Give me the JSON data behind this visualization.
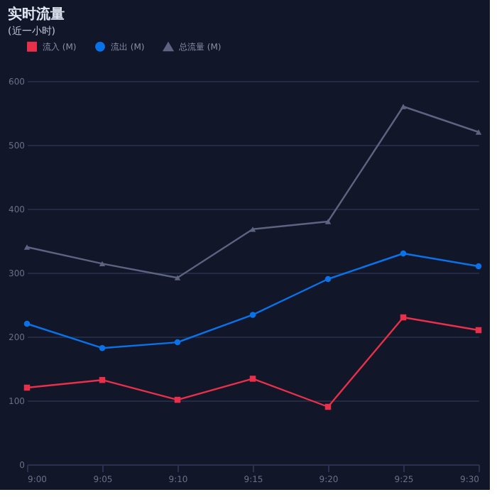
{
  "chart_data": {
    "type": "line",
    "title": "实时流量",
    "subtitle": "(近一小时)",
    "categories": [
      "9:00",
      "9:05",
      "9:10",
      "9:15",
      "9:20",
      "9:25",
      "9:30"
    ],
    "series": [
      {
        "name": "流入 (M)",
        "color": "#e8304a",
        "marker": "square",
        "values": [
          120,
          132,
          101,
          134,
          90,
          230,
          210
        ]
      },
      {
        "name": "流出 (M)",
        "color": "#0a72e8",
        "marker": "circle",
        "values": [
          220,
          182,
          191,
          234,
          290,
          330,
          310
        ]
      },
      {
        "name": "总流量 (M)",
        "color": "#5d6380",
        "marker": "triangle",
        "values": [
          340,
          314,
          292,
          368,
          380,
          560,
          520
        ]
      }
    ],
    "ylim": [
      0,
      600
    ],
    "yticks": [
      0,
      100,
      200,
      300,
      400,
      500,
      600
    ],
    "grid": "y",
    "legend": "top",
    "line_style": "solid"
  }
}
